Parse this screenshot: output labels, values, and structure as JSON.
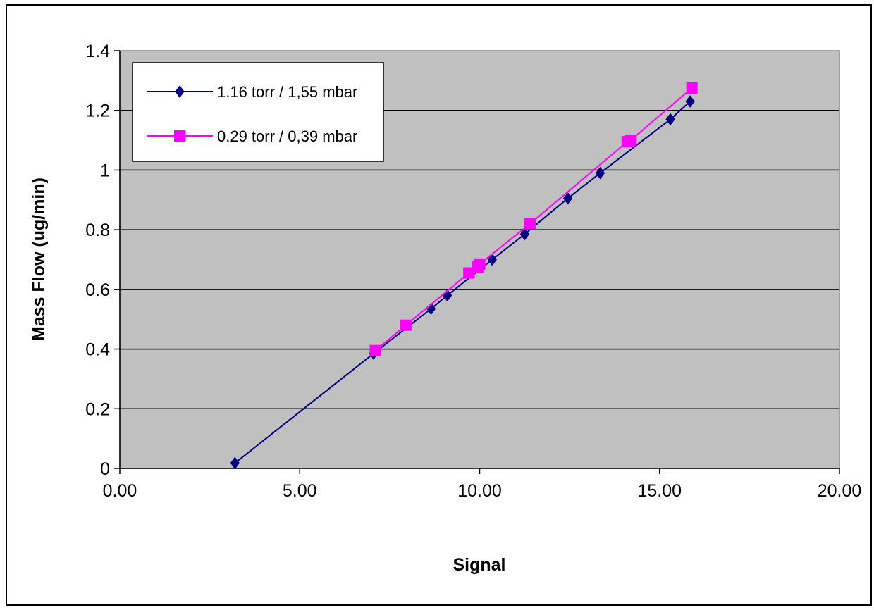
{
  "chart_data": {
    "type": "line",
    "title": "",
    "xlabel": "Signal",
    "ylabel": "Mass Flow (ug/min)",
    "xlim": [
      0,
      20
    ],
    "ylim": [
      0,
      1.4
    ],
    "x_ticks": [
      "0.00",
      "5.00",
      "10.00",
      "15.00",
      "20.00"
    ],
    "y_ticks": [
      "0",
      "0.2",
      "0.4",
      "0.6",
      "0.8",
      "1",
      "1.2",
      "1.4"
    ],
    "x_tick_values": [
      0,
      5,
      10,
      15,
      20
    ],
    "y_tick_values": [
      0,
      0.2,
      0.4,
      0.6,
      0.8,
      1.0,
      1.2,
      1.4
    ],
    "grid": "horizontal",
    "legend_position": "top-left",
    "plot_background": "#c0c0c0",
    "series": [
      {
        "name": "1.16 torr / 1,55 mbar",
        "color": "#000080",
        "marker": "diamond",
        "x": [
          3.2,
          7.05,
          8.65,
          9.1,
          10.35,
          11.25,
          12.45,
          13.35,
          15.3,
          15.85
        ],
        "y": [
          0.018,
          0.385,
          0.535,
          0.58,
          0.7,
          0.785,
          0.905,
          0.99,
          1.17,
          1.23
        ]
      },
      {
        "name": "0.29 torr / 0,39 mbar",
        "color": "#ff00ff",
        "marker": "square",
        "x": [
          7.1,
          7.95,
          9.7,
          9.95,
          10.0,
          11.4,
          14.1,
          14.2,
          15.9
        ],
        "y": [
          0.395,
          0.48,
          0.655,
          0.675,
          0.685,
          0.82,
          1.095,
          1.1,
          1.275
        ]
      }
    ]
  }
}
